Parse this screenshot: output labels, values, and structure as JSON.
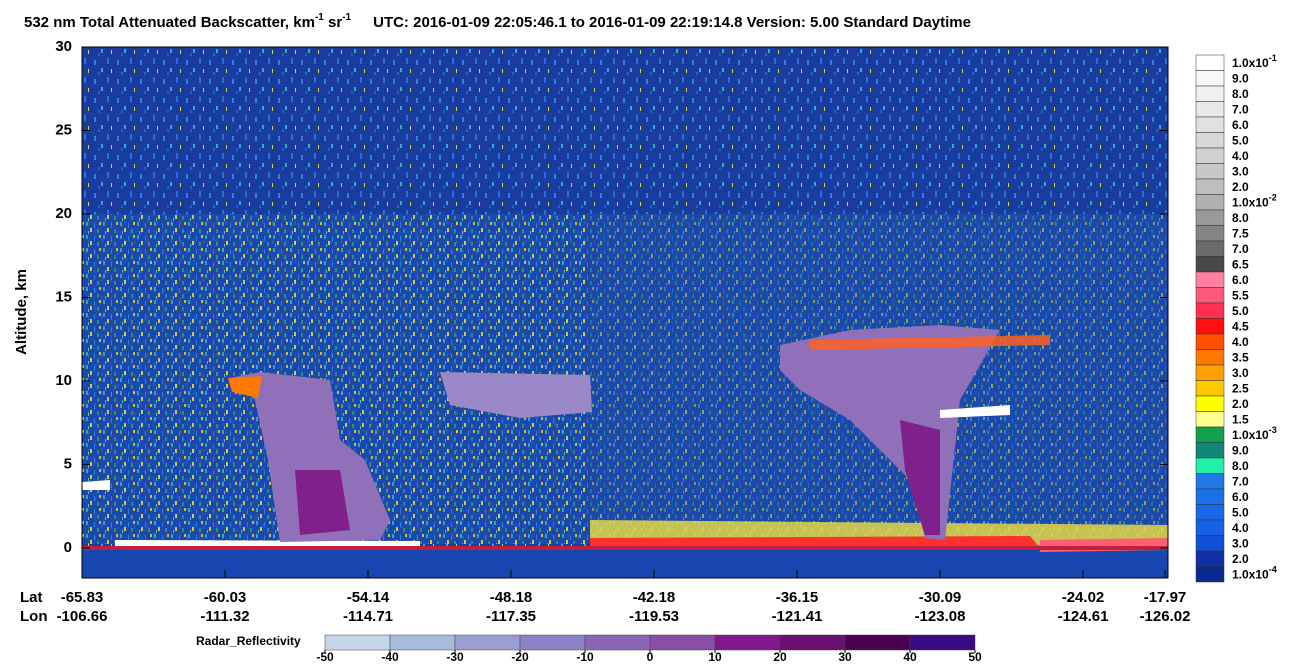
{
  "chart_data": {
    "type": "curtain",
    "title": {
      "text": "532 nm Total Attenuated Backscatter, km",
      "sup1": "-1",
      "mid": " sr",
      "sup2": "-1",
      "rest": "UTC:  2016-01-09 22:05:46.1  to  2016-01-09 22:19:14.8    Version: 5.00  Standard  Daytime"
    },
    "y_label": "Altitude, km",
    "ylim": [
      -1.8,
      30
    ],
    "yticks": [
      0,
      5,
      10,
      15,
      20,
      25,
      30
    ],
    "x_rows": [
      {
        "name": "Lat",
        "labels": [
          -65.83,
          -60.03,
          -54.14,
          -48.18,
          -42.18,
          -36.15,
          -30.09,
          -24.02,
          -17.97
        ]
      },
      {
        "name": "Lon",
        "labels": [
          -106.66,
          -111.32,
          -114.71,
          -117.35,
          -119.53,
          -121.41,
          -123.08,
          -124.61,
          -126.02
        ]
      }
    ],
    "colorbar": [
      {
        "label": "1.0x10",
        "sup": "-1",
        "color": "#ffffff"
      },
      {
        "label": "9.0",
        "color": "#f8f8f8"
      },
      {
        "label": "8.0",
        "color": "#f0f0f0"
      },
      {
        "label": "7.0",
        "color": "#e8e8e8"
      },
      {
        "label": "6.0",
        "color": "#e0e0e0"
      },
      {
        "label": "5.0",
        "color": "#d8d8d8"
      },
      {
        "label": "4.0",
        "color": "#d0d0d0"
      },
      {
        "label": "3.0",
        "color": "#c8c8c8"
      },
      {
        "label": "2.0",
        "color": "#bebebe"
      },
      {
        "label": "1.0x10",
        "sup": "-2",
        "color": "#b0b0b0"
      },
      {
        "label": "8.0",
        "color": "#9a9a9a"
      },
      {
        "label": "7.5",
        "color": "#848484"
      },
      {
        "label": "7.0",
        "color": "#6a6a6a"
      },
      {
        "label": "6.5",
        "color": "#484848"
      },
      {
        "label": "6.0",
        "color": "#ff80a0"
      },
      {
        "label": "5.5",
        "color": "#ff5878"
      },
      {
        "label": "5.0",
        "color": "#ff3050"
      },
      {
        "label": "4.5",
        "color": "#ff1010"
      },
      {
        "label": "4.0",
        "color": "#ff5000"
      },
      {
        "label": "3.5",
        "color": "#ff7800"
      },
      {
        "label": "3.0",
        "color": "#ffa000"
      },
      {
        "label": "2.5",
        "color": "#ffc800"
      },
      {
        "label": "2.0",
        "color": "#ffff00"
      },
      {
        "label": "1.5",
        "color": "#ffff90"
      },
      {
        "label": "1.0x10",
        "sup": "-3",
        "color": "#10a050"
      },
      {
        "label": "9.0",
        "color": "#108878"
      },
      {
        "label": "8.0",
        "color": "#20f0a8"
      },
      {
        "label": "7.0",
        "color": "#1e78e8"
      },
      {
        "label": "6.0",
        "color": "#1a70e8"
      },
      {
        "label": "5.0",
        "color": "#1868e8"
      },
      {
        "label": "4.0",
        "color": "#1660e8"
      },
      {
        "label": "3.0",
        "color": "#1050d8"
      },
      {
        "label": "2.0",
        "color": "#1030a8"
      },
      {
        "label": "1.0x10",
        "sup": "-4",
        "color": "#0a2890"
      }
    ],
    "radar": {
      "label": "Radar_Reflectivity",
      "lim": [
        -50,
        50
      ],
      "ticks": [
        -50,
        -40,
        -30,
        -20,
        -10,
        0,
        10,
        20,
        30,
        40,
        50
      ],
      "colors": [
        "#c4d6e8",
        "#a6bada",
        "#9a9ed2",
        "#8c82c6",
        "#8a66b6",
        "#8a4ea6",
        "#80188c",
        "#6a1070",
        "#4c0050",
        "#3a0a86"
      ]
    }
  }
}
